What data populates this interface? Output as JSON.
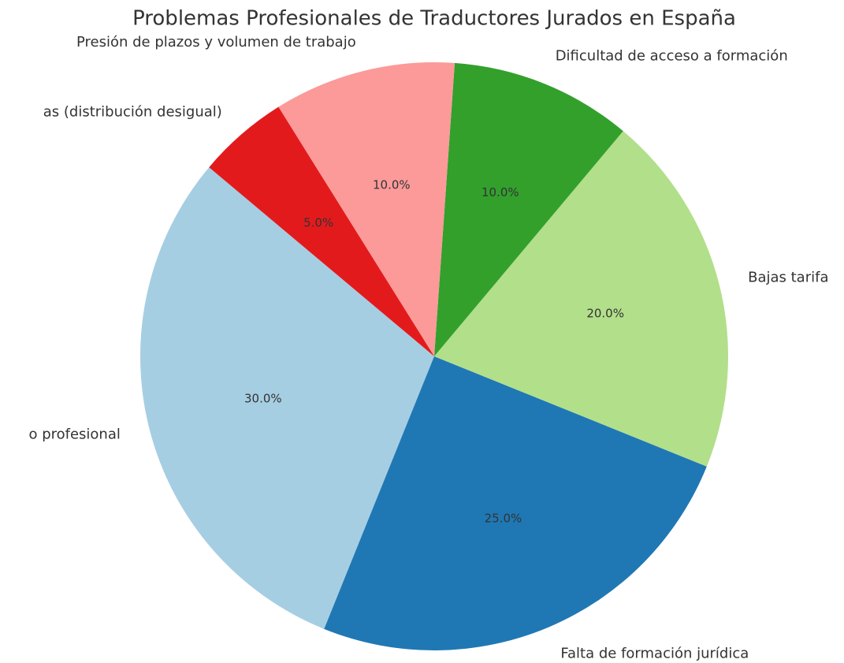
{
  "chart_data": {
    "type": "pie",
    "title": "Problemas Profesionales de Traductores Jurados en España",
    "categories": [
      "o profesional",
      "Falta de formación jurídica",
      "Bajas tarifa",
      "Dificultad de acceso a formación",
      "Presión de plazos y volumen de trabajo",
      "as (distribución desigual)"
    ],
    "values": [
      30,
      25,
      20,
      10,
      10,
      5
    ],
    "value_labels": [
      "30.0%",
      "25.0%",
      "20.0%",
      "10.0%",
      "10.0%",
      "5.0%"
    ],
    "colors": [
      "#a6cee3",
      "#1f78b4",
      "#b2df8a",
      "#33a02c",
      "#fb9a99",
      "#e31a1c"
    ]
  }
}
